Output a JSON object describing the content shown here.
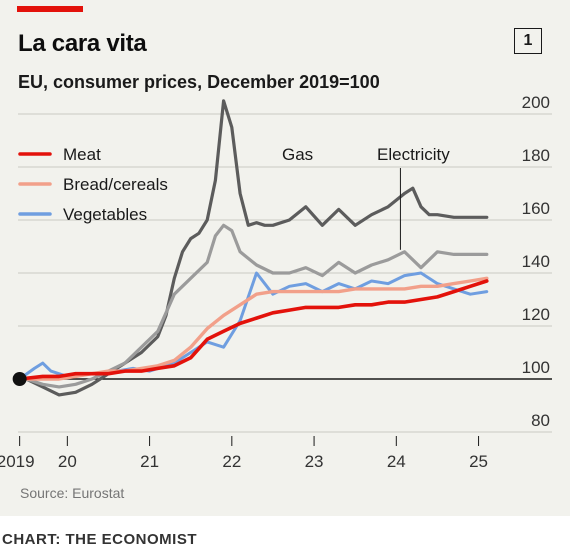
{
  "header": {
    "title": "La cara vita",
    "subtitle": "EU, consumer prices, December 2019=100",
    "badge": "1"
  },
  "footer": {
    "source": "Source: Eurostat",
    "credit": "CHART: THE ECONOMIST"
  },
  "colors": {
    "background": "#f2f2ed",
    "accent_red": "#e3120b",
    "meat": "#e3120b",
    "bread": "#f2a08a",
    "vegetables": "#6f9ee0",
    "gas": "#5c5c5c",
    "electricity": "#9b9b9b"
  },
  "chart_data": {
    "type": "line",
    "ylim": [
      80,
      200
    ],
    "yticks": [
      80,
      100,
      120,
      140,
      160,
      180,
      200
    ],
    "ytick_labels": [
      "80",
      "100",
      "120",
      "140",
      "160",
      "180",
      "200"
    ],
    "xlim": [
      2019.9,
      2025.7
    ],
    "xticks": [
      2019.92,
      2020.5,
      2021.5,
      2022.5,
      2023.5,
      2024.5,
      2025.5
    ],
    "xtick_labels": [
      "2019",
      "20",
      "21",
      "22",
      "23",
      "24",
      "25"
    ],
    "grid": true,
    "legend": [
      {
        "name": "Meat",
        "series": "meat"
      },
      {
        "name": "Bread/cereals",
        "series": "bread"
      },
      {
        "name": "Vegetables",
        "series": "vegetables"
      }
    ],
    "annotations": [
      {
        "text": "Gas",
        "series": "gas"
      },
      {
        "text": "Electricity",
        "series": "electricity"
      }
    ],
    "start_marker": {
      "x": 2019.92,
      "y": 100
    },
    "series": [
      {
        "key": "gas",
        "name": "Gas",
        "x": [
          2019.92,
          2020.0,
          2020.2,
          2020.4,
          2020.6,
          2020.8,
          2021.0,
          2021.2,
          2021.4,
          2021.6,
          2021.7,
          2021.8,
          2021.9,
          2022.0,
          2022.1,
          2022.2,
          2022.3,
          2022.4,
          2022.5,
          2022.6,
          2022.7,
          2022.8,
          2022.9,
          2023.0,
          2023.2,
          2023.4,
          2023.6,
          2023.8,
          2024.0,
          2024.2,
          2024.4,
          2024.6,
          2024.7,
          2024.8,
          2024.9,
          2025.0,
          2025.2,
          2025.4,
          2025.6
        ],
        "values": [
          100,
          100,
          97,
          94,
          95,
          98,
          102,
          106,
          110,
          116,
          124,
          138,
          148,
          153,
          155,
          160,
          175,
          205,
          195,
          170,
          158,
          159,
          158,
          158,
          160,
          165,
          158,
          164,
          158,
          162,
          165,
          170,
          172,
          165,
          162,
          162,
          161,
          161,
          161
        ]
      },
      {
        "key": "electricity",
        "name": "Electricity",
        "x": [
          2019.92,
          2020.0,
          2020.2,
          2020.4,
          2020.6,
          2020.8,
          2021.0,
          2021.2,
          2021.4,
          2021.6,
          2021.8,
          2022.0,
          2022.2,
          2022.3,
          2022.4,
          2022.5,
          2022.6,
          2022.8,
          2023.0,
          2023.2,
          2023.4,
          2023.6,
          2023.8,
          2024.0,
          2024.2,
          2024.4,
          2024.6,
          2024.8,
          2025.0,
          2025.2,
          2025.4,
          2025.6
        ],
        "values": [
          100,
          100,
          98,
          97,
          98,
          100,
          103,
          106,
          112,
          118,
          132,
          138,
          144,
          154,
          158,
          156,
          148,
          143,
          140,
          140,
          142,
          139,
          144,
          140,
          143,
          145,
          148,
          142,
          148,
          147,
          147,
          147
        ]
      },
      {
        "key": "vegetables",
        "name": "Vegetables",
        "x": [
          2019.92,
          2020.1,
          2020.2,
          2020.3,
          2020.5,
          2020.7,
          2020.9,
          2021.1,
          2021.3,
          2021.5,
          2021.6,
          2021.8,
          2022.0,
          2022.2,
          2022.4,
          2022.6,
          2022.7,
          2022.8,
          2022.9,
          2023.0,
          2023.2,
          2023.4,
          2023.6,
          2023.8,
          2024.0,
          2024.2,
          2024.4,
          2024.6,
          2024.8,
          2025.0,
          2025.2,
          2025.4,
          2025.6
        ],
        "values": [
          100,
          104,
          106,
          103,
          101,
          102,
          102,
          103,
          104,
          103,
          104,
          106,
          110,
          114,
          112,
          122,
          131,
          140,
          136,
          132,
          135,
          136,
          133,
          136,
          134,
          137,
          136,
          139,
          140,
          136,
          134,
          132,
          133
        ]
      },
      {
        "key": "bread",
        "name": "Bread/cereals",
        "x": [
          2019.92,
          2020.2,
          2020.4,
          2020.6,
          2020.8,
          2021.0,
          2021.2,
          2021.4,
          2021.6,
          2021.8,
          2022.0,
          2022.2,
          2022.4,
          2022.6,
          2022.8,
          2023.0,
          2023.2,
          2023.4,
          2023.6,
          2023.8,
          2024.0,
          2024.2,
          2024.4,
          2024.6,
          2024.8,
          2025.0,
          2025.2,
          2025.4,
          2025.6
        ],
        "values": [
          100,
          100,
          100,
          101,
          102,
          103,
          103,
          104,
          105,
          107,
          112,
          119,
          124,
          128,
          132,
          133,
          133,
          133,
          133,
          133,
          134,
          134,
          134,
          134,
          135,
          135,
          136,
          137,
          138
        ]
      },
      {
        "key": "meat",
        "name": "Meat",
        "x": [
          2019.92,
          2020.2,
          2020.4,
          2020.6,
          2020.8,
          2021.0,
          2021.2,
          2021.4,
          2021.6,
          2021.8,
          2022.0,
          2022.2,
          2022.4,
          2022.6,
          2022.8,
          2023.0,
          2023.2,
          2023.4,
          2023.6,
          2023.8,
          2024.0,
          2024.2,
          2024.4,
          2024.6,
          2024.8,
          2025.0,
          2025.2,
          2025.4,
          2025.6
        ],
        "values": [
          100,
          101,
          101,
          102,
          102,
          102,
          103,
          103,
          104,
          105,
          108,
          115,
          118,
          121,
          123,
          125,
          126,
          127,
          127,
          127,
          128,
          128,
          129,
          129,
          130,
          131,
          133,
          135,
          137
        ]
      }
    ]
  }
}
